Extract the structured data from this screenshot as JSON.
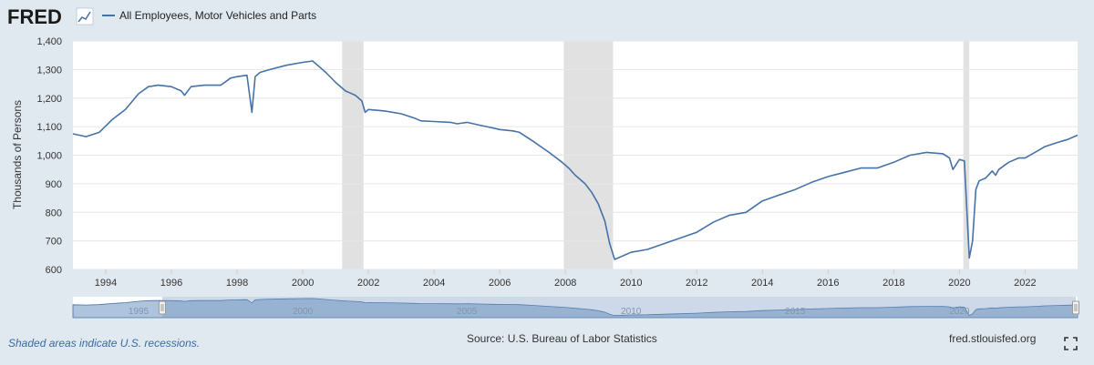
{
  "header": {
    "logo_text": "FRED",
    "logo_icon": "line-chart-icon"
  },
  "chart_data": {
    "type": "line",
    "title": "",
    "xlabel": "",
    "ylabel": "Thousands of Persons",
    "ylim": [
      600,
      1400
    ],
    "xlim": [
      1993.0,
      2023.6
    ],
    "y_ticks": [
      "600",
      "700",
      "800",
      "900",
      "1,000",
      "1,100",
      "1,200",
      "1,300",
      "1,400"
    ],
    "y_tick_values": [
      600,
      700,
      800,
      900,
      1000,
      1100,
      1200,
      1300,
      1400
    ],
    "x_ticks": [
      "1994",
      "1996",
      "1998",
      "2000",
      "2002",
      "2004",
      "2006",
      "2008",
      "2010",
      "2012",
      "2014",
      "2016",
      "2018",
      "2020",
      "2022"
    ],
    "x_tick_values": [
      1994,
      1996,
      1998,
      2000,
      2002,
      2004,
      2006,
      2008,
      2010,
      2012,
      2014,
      2016,
      2018,
      2020,
      2022
    ],
    "legend": "top-left",
    "grid": true,
    "series": [
      {
        "name": "All Employees, Motor Vehicles and Parts",
        "color": "#4572a7",
        "x": [
          1993.0,
          1993.4,
          1993.8,
          1994.2,
          1994.6,
          1995.0,
          1995.3,
          1995.6,
          1996.0,
          1996.3,
          1996.4,
          1996.6,
          1997.0,
          1997.5,
          1997.8,
          1998.0,
          1998.3,
          1998.45,
          1998.55,
          1998.7,
          1999.0,
          1999.5,
          2000.0,
          2000.3,
          2000.5,
          2000.7,
          2001.0,
          2001.3,
          2001.6,
          2001.8,
          2001.9,
          2002.0,
          2002.5,
          2003.0,
          2003.4,
          2003.6,
          2004.0,
          2004.5,
          2004.7,
          2005.0,
          2005.4,
          2005.6,
          2005.8,
          2006.0,
          2006.4,
          2006.6,
          2007.0,
          2007.5,
          2007.9,
          2008.1,
          2008.3,
          2008.6,
          2008.8,
          2009.0,
          2009.1,
          2009.2,
          2009.35,
          2009.5,
          2010.0,
          2010.5,
          2011.0,
          2011.5,
          2012.0,
          2012.5,
          2013.0,
          2013.5,
          2014.0,
          2014.5,
          2015.0,
          2015.5,
          2016.0,
          2016.5,
          2017.0,
          2017.5,
          2018.0,
          2018.5,
          2019.0,
          2019.5,
          2019.7,
          2019.8,
          2020.0,
          2020.15,
          2020.3,
          2020.4,
          2020.5,
          2020.6,
          2020.8,
          2021.0,
          2021.1,
          2021.2,
          2021.5,
          2021.8,
          2022.0,
          2022.3,
          2022.6,
          2023.0,
          2023.3,
          2023.6
        ],
        "values": [
          1075,
          1065,
          1080,
          1125,
          1160,
          1215,
          1240,
          1245,
          1240,
          1225,
          1210,
          1240,
          1245,
          1245,
          1270,
          1275,
          1280,
          1150,
          1275,
          1290,
          1300,
          1315,
          1325,
          1330,
          1310,
          1290,
          1255,
          1225,
          1210,
          1190,
          1150,
          1160,
          1155,
          1145,
          1130,
          1120,
          1118,
          1115,
          1110,
          1115,
          1105,
          1100,
          1095,
          1090,
          1085,
          1080,
          1050,
          1010,
          975,
          955,
          930,
          900,
          870,
          830,
          800,
          770,
          690,
          635,
          660,
          670,
          690,
          710,
          730,
          765,
          790,
          800,
          840,
          860,
          880,
          905,
          925,
          940,
          955,
          955,
          975,
          1000,
          1010,
          1005,
          990,
          950,
          985,
          980,
          640,
          700,
          880,
          910,
          920,
          945,
          930,
          950,
          975,
          990,
          990,
          1010,
          1030,
          1045,
          1055,
          1070
        ]
      }
    ],
    "recessions": [
      {
        "start": 2001.2,
        "end": 2001.85
      },
      {
        "start": 2007.95,
        "end": 2009.45
      },
      {
        "start": 2020.12,
        "end": 2020.3
      }
    ]
  },
  "navigator": {
    "labels": [
      "1995",
      "2000",
      "2005",
      "2010",
      "2015",
      "2020"
    ],
    "label_values": [
      1995,
      2000,
      2005,
      2010,
      2015,
      2020
    ]
  },
  "footer": {
    "note": "Shaded areas indicate U.S. recessions.",
    "source": "Source: U.S. Bureau of Labor Statistics",
    "site": "fred.stlouisfed.org"
  },
  "icons": {
    "fullscreen": "fullscreen-icon"
  },
  "colors": {
    "background": "#e1e9f0",
    "plot_background": "#ffffff",
    "line": "#4572a7",
    "recession": "#e1e1e1",
    "navigator_fill": "#aec3dc"
  }
}
